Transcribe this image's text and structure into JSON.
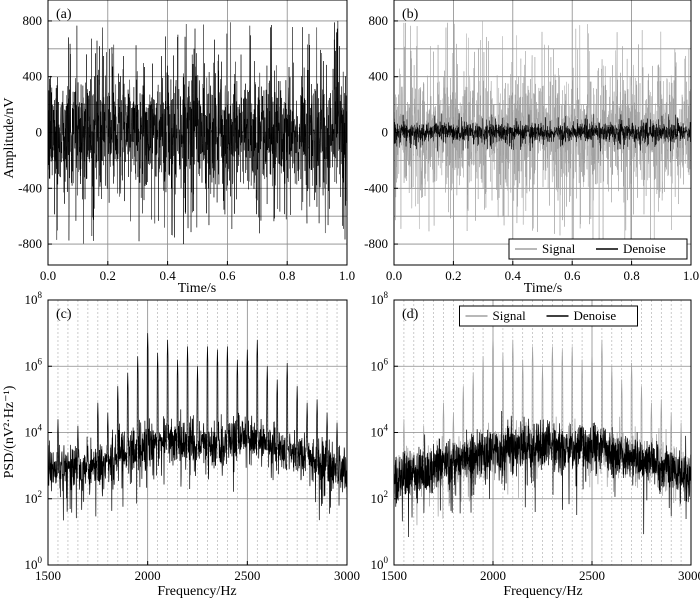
{
  "chart_data": [
    {
      "panel": "(a)",
      "type": "line",
      "xlabel": "Time/s",
      "ylabel": "Amplitude/nV",
      "xlim": [
        0,
        1.0
      ],
      "ylim": [
        -950,
        950
      ],
      "xticks": [
        "0.0",
        "0.2",
        "0.4",
        "0.6",
        "0.8",
        "1.0"
      ],
      "yticks": [
        "800",
        "400",
        "0",
        "-400",
        "-800"
      ],
      "grid": true,
      "legend": null,
      "series": [
        {
          "color": "#000000",
          "kind": "noise",
          "envelope": [
            [
              0.0,
              560
            ],
            [
              0.1,
              560
            ],
            [
              0.2,
              560
            ],
            [
              0.3,
              550
            ],
            [
              0.4,
              545
            ],
            [
              0.5,
              540
            ],
            [
              0.6,
              545
            ],
            [
              0.7,
              550
            ],
            [
              0.8,
              555
            ],
            [
              0.9,
              560
            ],
            [
              1.0,
              560
            ]
          ],
          "peak_max": 800
        }
      ]
    },
    {
      "panel": "(b)",
      "type": "line",
      "xlabel": "Time/s",
      "ylabel": "",
      "xlim": [
        0,
        1.0
      ],
      "ylim": [
        -950,
        950
      ],
      "xticks": [
        "0.0",
        "0.2",
        "0.4",
        "0.6",
        "0.8",
        "1.0"
      ],
      "yticks": [
        "800",
        "400",
        "0",
        "-400",
        "-800"
      ],
      "grid": true,
      "legend": "bottom-right",
      "series": [
        {
          "name": "Signal",
          "color": "#a0a0a0",
          "kind": "noise",
          "envelope": [
            [
              0.0,
              560
            ],
            [
              0.5,
              540
            ],
            [
              1.0,
              560
            ]
          ],
          "peak_max": 800
        },
        {
          "name": "Denoise",
          "color": "#000000",
          "kind": "noise",
          "envelope": [
            [
              0.0,
              85
            ],
            [
              0.25,
              80
            ],
            [
              0.5,
              75
            ],
            [
              0.75,
              80
            ],
            [
              1.0,
              85
            ]
          ],
          "peak_max": 140
        }
      ]
    },
    {
      "panel": "(c)",
      "type": "line",
      "xlabel": "Frequency/Hz",
      "ylabel": "PSD/(nV²·Hz⁻¹)",
      "xlim": [
        1500,
        3000
      ],
      "ylim_log10": [
        0,
        8
      ],
      "xticks": [
        "1500",
        "2000",
        "2500",
        "3000"
      ],
      "yticks_log10": [
        0,
        2,
        4,
        6,
        8
      ],
      "grid": true,
      "legend": null,
      "series": [
        {
          "color": "#000000",
          "kind": "spectrum",
          "baseline_log10": [
            [
              1500,
              2.9
            ],
            [
              1700,
              3.0
            ],
            [
              1900,
              3.4
            ],
            [
              2100,
              3.8
            ],
            [
              2300,
              3.6
            ],
            [
              2500,
              3.9
            ],
            [
              2650,
              3.5
            ],
            [
              2800,
              3.2
            ],
            [
              3000,
              2.9
            ]
          ],
          "peaks": [
            [
              1550,
              4.4
            ],
            [
              1600,
              3.4
            ],
            [
              1650,
              4.2
            ],
            [
              1700,
              3.6
            ],
            [
              1750,
              4.9
            ],
            [
              1800,
              4.6
            ],
            [
              1850,
              5.4
            ],
            [
              1900,
              5.8
            ],
            [
              1950,
              6.3
            ],
            [
              2000,
              7.0
            ],
            [
              2050,
              6.4
            ],
            [
              2100,
              6.8
            ],
            [
              2150,
              6.2
            ],
            [
              2200,
              6.6
            ],
            [
              2250,
              6.0
            ],
            [
              2300,
              6.6
            ],
            [
              2350,
              6.5
            ],
            [
              2400,
              6.6
            ],
            [
              2450,
              6.2
            ],
            [
              2500,
              6.5
            ],
            [
              2550,
              6.8
            ],
            [
              2600,
              6.0
            ],
            [
              2650,
              5.6
            ],
            [
              2700,
              6.1
            ],
            [
              2750,
              5.4
            ],
            [
              2800,
              4.9
            ],
            [
              2850,
              5.0
            ],
            [
              2900,
              4.6
            ],
            [
              2950,
              4.3
            ]
          ]
        }
      ]
    },
    {
      "panel": "(d)",
      "type": "line",
      "xlabel": "Frequency/Hz",
      "ylabel": "",
      "xlim": [
        1500,
        3000
      ],
      "ylim_log10": [
        0,
        8
      ],
      "xticks": [
        "1500",
        "2000",
        "2500",
        "3000"
      ],
      "yticks_log10": [
        0,
        2,
        4,
        6,
        8
      ],
      "grid": true,
      "legend": "top-center",
      "series": [
        {
          "name": "Signal",
          "color": "#a0a0a0",
          "kind": "spectrum",
          "baseline_log10": [
            [
              1500,
              2.6
            ],
            [
              1700,
              2.9
            ],
            [
              1900,
              3.3
            ],
            [
              2100,
              3.6
            ],
            [
              2300,
              3.6
            ],
            [
              2500,
              3.6
            ],
            [
              2700,
              3.3
            ],
            [
              2900,
              2.9
            ],
            [
              3000,
              2.7
            ]
          ],
          "peaks": [
            [
              1550,
              4.4
            ],
            [
              1600,
              3.4
            ],
            [
              1650,
              4.2
            ],
            [
              1700,
              3.6
            ],
            [
              1750,
              4.9
            ],
            [
              1800,
              4.6
            ],
            [
              1850,
              5.4
            ],
            [
              1900,
              5.8
            ],
            [
              1950,
              6.3
            ],
            [
              2000,
              7.0
            ],
            [
              2050,
              6.4
            ],
            [
              2100,
              6.8
            ],
            [
              2150,
              6.2
            ],
            [
              2200,
              6.6
            ],
            [
              2250,
              6.0
            ],
            [
              2300,
              6.6
            ],
            [
              2350,
              6.5
            ],
            [
              2400,
              6.6
            ],
            [
              2450,
              6.2
            ],
            [
              2500,
              6.5
            ],
            [
              2550,
              6.8
            ],
            [
              2600,
              6.0
            ],
            [
              2650,
              5.6
            ],
            [
              2700,
              6.1
            ],
            [
              2750,
              5.4
            ],
            [
              2800,
              4.9
            ],
            [
              2850,
              5.0
            ],
            [
              2900,
              4.6
            ],
            [
              2950,
              4.3
            ]
          ]
        },
        {
          "name": "Denoise",
          "color": "#000000",
          "kind": "spectrum",
          "baseline_log10": [
            [
              1500,
              2.6
            ],
            [
              1700,
              2.9
            ],
            [
              1900,
              3.3
            ],
            [
              2100,
              3.6
            ],
            [
              2300,
              3.6
            ],
            [
              2500,
              3.6
            ],
            [
              2700,
              3.3
            ],
            [
              2900,
              2.9
            ],
            [
              3000,
              2.7
            ]
          ],
          "peaks": []
        }
      ]
    }
  ],
  "legend_labels": {
    "signal": "Signal",
    "denoise": "Denoise"
  }
}
